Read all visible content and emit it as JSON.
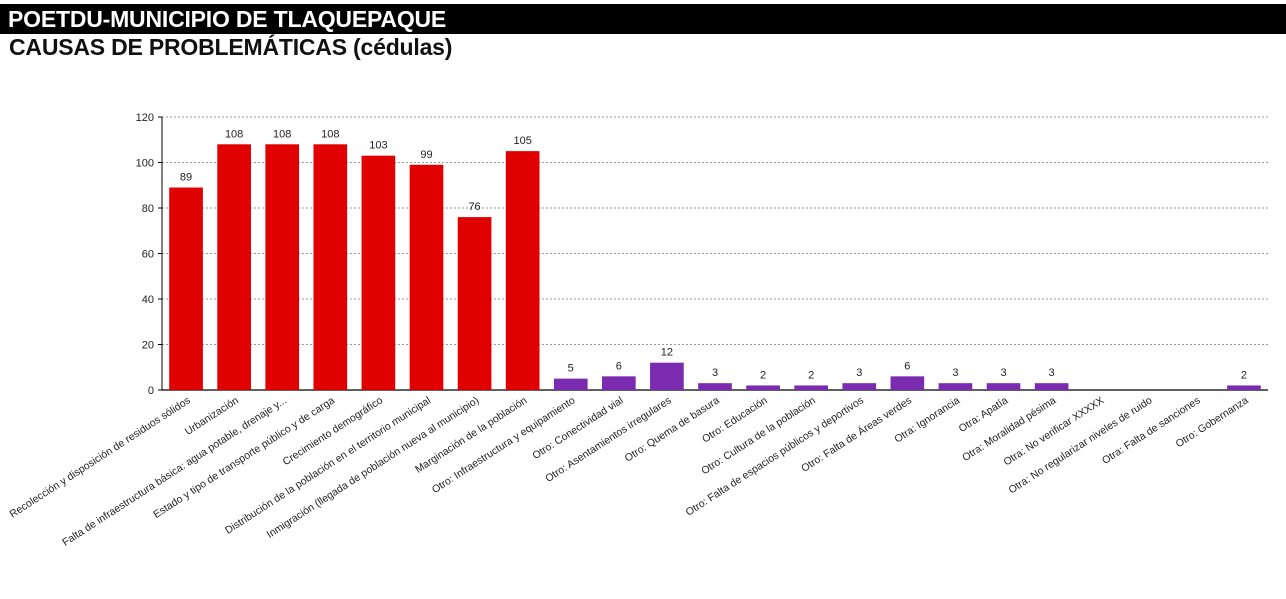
{
  "header": {
    "title": "POETDU-MUNICIPIO DE TLAQUEPAQUE",
    "subtitle": "CAUSAS DE PROBLEMÁTICAS (cédulas)"
  },
  "colors": {
    "primary_series": "#e00000",
    "other_series": "#7a2bb0",
    "grid": "#9a9a9a"
  },
  "chart_data": {
    "type": "bar",
    "title": "CAUSAS DE PROBLEMÁTICAS (cédulas)",
    "xlabel": "",
    "ylabel": "",
    "ylim": [
      0,
      120
    ],
    "yticks": [
      0,
      20,
      40,
      60,
      80,
      100,
      120
    ],
    "grid": true,
    "legend": "none",
    "categories": [
      "Recolección y disposición de residuos sólidos",
      "Urbanización",
      "Falta de infraestructura básica: agua potable, drenaje y...",
      "Estado y tipo de transporte público y de carga",
      "Crecimiento demográfico",
      "Distribución de la población en el territorio municipal",
      "Inmigración (llegada de población nueva al municipio)",
      "Marginación de la población",
      "Otro: Infraestructura y equipamiento",
      "Otro: Conectividad vial",
      "Otro: Asentamientos irregulares",
      "Otro: Quema de basura",
      "Otro: Educación",
      "Otro: Cultura de la población",
      "Otro: Falta de espacios públicos y deportivos",
      "Otro: Falta de Áreas verdes",
      "Otra: Ignorancia",
      "Otra: Apatía",
      "Otra: Moralidad pésima",
      "Otra: No verificar XXXXX",
      "Otra: No regularizar niveles de ruido",
      "Otra: Falta de sanciones",
      "Otro: Gobernanza"
    ],
    "values": [
      89,
      108,
      108,
      108,
      103,
      99,
      76,
      105,
      5,
      6,
      12,
      3,
      2,
      2,
      3,
      6,
      3,
      3,
      3,
      null,
      null,
      null,
      2
    ],
    "groups": [
      "primary",
      "primary",
      "primary",
      "primary",
      "primary",
      "primary",
      "primary",
      "primary",
      "other",
      "other",
      "other",
      "other",
      "other",
      "other",
      "other",
      "other",
      "other",
      "other",
      "other",
      "other",
      "other",
      "other",
      "other"
    ]
  }
}
